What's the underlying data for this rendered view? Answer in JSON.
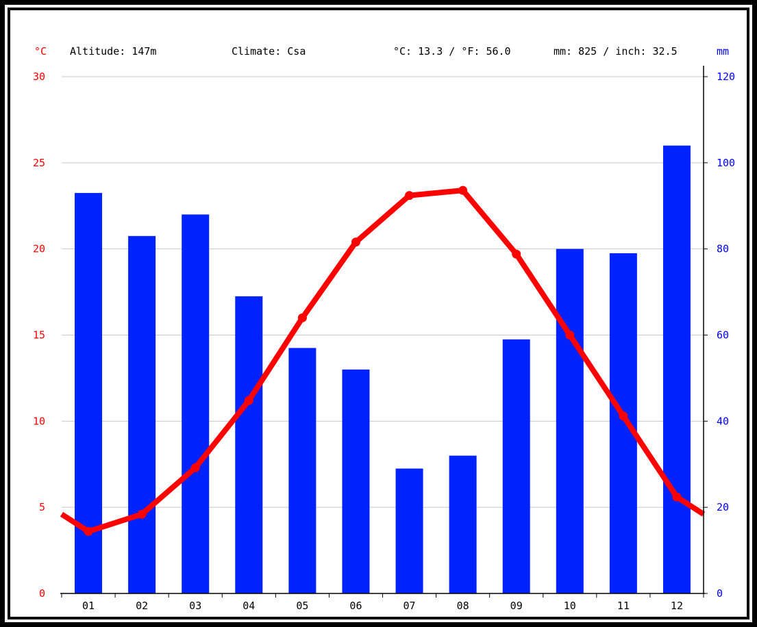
{
  "header": {
    "left_unit": "°C",
    "altitude": "Altitude: 147m",
    "climate": "Climate: Csa",
    "temperature_summary": "°C: 13.3 / °F: 56.0",
    "precipitation_summary": "mm: 825 / inch: 32.5",
    "right_unit": "mm"
  },
  "colors": {
    "temperature": "#ff0000",
    "precipitation": "#0022ff",
    "grid": "#c8c8c8",
    "left_axis_text": "#ff0000",
    "right_axis_text": "#0000ff"
  },
  "chart_data": {
    "type": "bar",
    "categories": [
      "01",
      "02",
      "03",
      "04",
      "05",
      "06",
      "07",
      "08",
      "09",
      "10",
      "11",
      "12"
    ],
    "series": [
      {
        "kind": "bar",
        "axis": "right",
        "values": [
          93,
          83,
          88,
          69,
          57,
          52,
          29,
          32,
          59,
          80,
          79,
          104
        ]
      },
      {
        "kind": "line",
        "axis": "left",
        "values": [
          3.6,
          4.6,
          7.3,
          11.2,
          16.0,
          20.4,
          23.1,
          23.4,
          19.7,
          15.0,
          10.3,
          5.6
        ]
      }
    ],
    "left_axis": {
      "ylim": [
        0,
        30
      ],
      "ticks": [
        "0",
        "5",
        "10",
        "15",
        "20",
        "25",
        "30"
      ]
    },
    "right_axis": {
      "ylim": [
        0,
        120
      ],
      "ticks": [
        "0",
        "20",
        "40",
        "60",
        "80",
        "100",
        "120"
      ]
    },
    "grid": true
  }
}
